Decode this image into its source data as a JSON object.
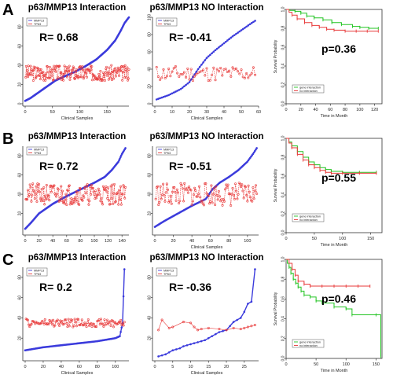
{
  "row_labels": [
    "A",
    "B",
    "C"
  ],
  "chart_data": [
    {
      "type": "line",
      "row": "A",
      "col": 0,
      "title": "p63/MMP13 Interaction",
      "annotation": "R= 0.68",
      "xlabel": "Clinical Samples",
      "ylabel": "",
      "xlim": [
        0,
        190
      ],
      "ylim": [
        0,
        90
      ],
      "xticks": [
        0,
        50,
        100,
        150
      ],
      "yticks": [
        0,
        20,
        40,
        60,
        80
      ],
      "legend": {
        "position": "top-left",
        "entries": [
          "MMP13",
          "TP63"
        ]
      },
      "series": [
        {
          "name": "MMP13",
          "color": "#3b3bdc",
          "marker": "dot",
          "n": 190,
          "anchors_x": [
            0,
            10,
            25,
            40,
            55,
            70,
            90,
            110,
            130,
            150,
            165,
            175,
            182,
            190
          ],
          "anchors_y": [
            3,
            6,
            12,
            18,
            24,
            28,
            33,
            39,
            46,
            56,
            66,
            76,
            84,
            90
          ]
        },
        {
          "name": "TP63",
          "color": "#e83a3a",
          "marker": "circle",
          "n": 190,
          "dashed": true,
          "center": 32,
          "spread": 8,
          "seed": 3
        }
      ]
    },
    {
      "type": "line",
      "row": "A",
      "col": 1,
      "title": "p63/MMP13 NO Interaction",
      "annotation": "R= -0.41",
      "xlabel": "Clinical Samples",
      "ylabel": "",
      "xlim": [
        0,
        60
      ],
      "ylim": [
        0,
        100
      ],
      "xticks": [
        0,
        10,
        20,
        30,
        40,
        50,
        60
      ],
      "yticks": [
        0,
        20,
        40,
        60,
        80,
        100
      ],
      "legend": {
        "position": "top-left",
        "entries": [
          "MMP13",
          "TP63"
        ]
      },
      "series": [
        {
          "name": "MMP13",
          "color": "#3b3bdc",
          "marker": "dot",
          "n": 58,
          "anchors_x": [
            1,
            8,
            15,
            20,
            25,
            30,
            35,
            40,
            45,
            50,
            55,
            58
          ],
          "anchors_y": [
            5,
            10,
            17,
            25,
            40,
            53,
            62,
            70,
            78,
            85,
            92,
            96
          ]
        },
        {
          "name": "TP63",
          "color": "#e83a3a",
          "marker": "circle",
          "n": 58,
          "dashed": true,
          "center": 35,
          "spread": 9,
          "seed": 11
        }
      ]
    },
    {
      "type": "line",
      "row": "A",
      "col": 2,
      "subtype": "survival",
      "title": "",
      "annotation": "p=0.36",
      "xlabel": "Time in Month",
      "ylabel": "Survival Probability",
      "xlim": [
        0,
        130
      ],
      "ylim": [
        0,
        1
      ],
      "xticks": [
        0,
        20,
        40,
        60,
        80,
        100,
        120
      ],
      "yticks": [
        0,
        0.2,
        0.4,
        0.6,
        0.8,
        1
      ],
      "ytick_labels": [
        "0.0",
        "0.2",
        "0.4",
        "0.6",
        "0.8",
        "1.0"
      ],
      "legend": {
        "position": "bottom-left",
        "entries": [
          "gene interaction",
          "no interaction"
        ]
      },
      "series": [
        {
          "name": "gene interaction",
          "color": "#22c422",
          "x": [
            0,
            5,
            12,
            20,
            28,
            38,
            50,
            62,
            75,
            90,
            100,
            112,
            125
          ],
          "y": [
            1,
            0.99,
            0.98,
            0.96,
            0.93,
            0.91,
            0.89,
            0.86,
            0.84,
            0.82,
            0.81,
            0.8,
            0.8
          ]
        },
        {
          "name": "no interaction",
          "color": "#e83a3a",
          "x": [
            0,
            4,
            8,
            15,
            25,
            35,
            45,
            55,
            65,
            80,
            95,
            110,
            125
          ],
          "y": [
            1,
            0.97,
            0.94,
            0.9,
            0.86,
            0.83,
            0.81,
            0.79,
            0.78,
            0.77,
            0.77,
            0.77,
            0.77
          ]
        }
      ]
    },
    {
      "type": "line",
      "row": "B",
      "col": 0,
      "title": "p63/MMP13 Interaction",
      "annotation": "R= 0.72",
      "xlabel": "",
      "ylabel": "",
      "xlim": [
        0,
        150
      ],
      "ylim": [
        0,
        90
      ],
      "xticks": [
        0,
        20,
        40,
        60,
        80,
        100,
        120,
        140
      ],
      "yticks": [
        20,
        40,
        60,
        80
      ],
      "legend": {
        "position": "top-left",
        "entries": [
          "MMP13",
          "TP63"
        ]
      },
      "series": [
        {
          "name": "MMP13",
          "color": "#3b3bdc",
          "marker": "dot",
          "n": 145,
          "anchors_x": [
            0,
            8,
            20,
            40,
            60,
            80,
            100,
            115,
            125,
            135,
            140,
            145
          ],
          "anchors_y": [
            4,
            10,
            20,
            30,
            38,
            45,
            52,
            58,
            65,
            74,
            82,
            88
          ]
        },
        {
          "name": "TP63",
          "color": "#e83a3a",
          "marker": "circle",
          "n": 145,
          "dashed": true,
          "center": 40,
          "spread": 11,
          "seed": 21
        }
      ]
    },
    {
      "type": "line",
      "row": "B",
      "col": 1,
      "title": "p63/MMP13 NO Interaction",
      "annotation": "R= -0.51",
      "xlabel": "Clinical Samples",
      "ylabel": "",
      "xlim": [
        0,
        112
      ],
      "ylim": [
        0,
        90
      ],
      "xticks": [
        0,
        20,
        40,
        60,
        80,
        100
      ],
      "yticks": [
        20,
        40,
        60,
        80
      ],
      "legend": {
        "position": "top-left",
        "entries": [
          "MMP13",
          "TP63"
        ]
      },
      "series": [
        {
          "name": "MMP13",
          "color": "#3b3bdc",
          "marker": "dot",
          "n": 110,
          "anchors_x": [
            0,
            10,
            25,
            40,
            55,
            62,
            70,
            80,
            90,
            100,
            106,
            110
          ],
          "anchors_y": [
            6,
            12,
            20,
            28,
            35,
            45,
            52,
            58,
            65,
            74,
            82,
            88
          ]
        },
        {
          "name": "TP63",
          "color": "#e83a3a",
          "marker": "circle",
          "n": 110,
          "dashed": true,
          "center": 40,
          "spread": 12,
          "seed": 33
        }
      ]
    },
    {
      "type": "line",
      "row": "B",
      "col": 2,
      "subtype": "survival",
      "title": "",
      "annotation": "p=0.55",
      "xlabel": "Time in Month",
      "ylabel": "Survival Probability",
      "xlim": [
        0,
        170
      ],
      "ylim": [
        0,
        1
      ],
      "xticks": [
        0,
        50,
        100,
        150
      ],
      "yticks": [
        0,
        0.2,
        0.4,
        0.6,
        0.8,
        1
      ],
      "ytick_labels": [
        "0.0",
        "0.2",
        "0.4",
        "0.6",
        "0.8",
        "1.0"
      ],
      "legend": {
        "position": "bottom-left",
        "entries": [
          "gene interaction",
          "no interaction"
        ]
      },
      "series": [
        {
          "name": "gene interaction",
          "color": "#22c422",
          "x": [
            0,
            5,
            10,
            20,
            30,
            40,
            50,
            60,
            70,
            80,
            100,
            130,
            160
          ],
          "y": [
            1,
            0.96,
            0.92,
            0.86,
            0.8,
            0.75,
            0.72,
            0.69,
            0.67,
            0.65,
            0.64,
            0.64,
            0.64
          ]
        },
        {
          "name": "no interaction",
          "color": "#e83a3a",
          "x": [
            0,
            5,
            10,
            20,
            30,
            40,
            50,
            60,
            70,
            80,
            100,
            130,
            160
          ],
          "y": [
            1,
            0.95,
            0.9,
            0.83,
            0.77,
            0.72,
            0.69,
            0.66,
            0.64,
            0.63,
            0.63,
            0.63,
            0.63
          ]
        }
      ]
    },
    {
      "type": "line",
      "row": "C",
      "col": 0,
      "title": "p63/MMP13 Interaction",
      "annotation": "R= 0.2",
      "xlabel": "Clinical Samples",
      "ylabel": "",
      "xlim": [
        0,
        115
      ],
      "ylim": [
        0,
        90
      ],
      "xticks": [
        0,
        20,
        40,
        60,
        80,
        100
      ],
      "yticks": [
        20,
        40,
        60,
        80
      ],
      "legend": {
        "position": "top-left",
        "entries": [
          "MMP13",
          "TP63"
        ]
      },
      "series": [
        {
          "name": "MMP13",
          "color": "#3b3bdc",
          "marker": "dot",
          "n": 110,
          "anchors_x": [
            0,
            20,
            40,
            60,
            80,
            100,
            105,
            108,
            110
          ],
          "anchors_y": [
            8,
            11,
            13,
            15,
            17,
            20,
            22,
            35,
            88
          ]
        },
        {
          "name": "TP63",
          "color": "#e83a3a",
          "marker": "circle",
          "n": 110,
          "dashed": true,
          "center": 35,
          "spread": 4,
          "seed": 47
        }
      ]
    },
    {
      "type": "line",
      "row": "C",
      "col": 1,
      "title": "p63/MMP13 NO Interaction",
      "annotation": "R= -0.36",
      "xlabel": "Clinical Samples",
      "ylabel": "",
      "xlim": [
        0,
        29
      ],
      "ylim": [
        0,
        90
      ],
      "xticks": [
        0,
        5,
        10,
        15,
        20,
        25
      ],
      "yticks": [
        20,
        40,
        60,
        80
      ],
      "legend": {
        "position": "top-left",
        "entries": [
          "MMP13",
          "TP63"
        ]
      },
      "series": [
        {
          "name": "MMP13",
          "color": "#3b3bdc",
          "marker": "dot",
          "x": [
            1,
            2,
            3,
            4,
            5,
            6,
            7,
            8,
            9,
            10,
            11,
            12,
            13,
            14,
            15,
            16,
            17,
            18,
            19,
            20,
            21,
            22,
            23,
            24,
            25,
            26,
            27,
            28
          ],
          "y": [
            2,
            3,
            4,
            6,
            8,
            9,
            10,
            12,
            13,
            14,
            15,
            16,
            17,
            18,
            20,
            22,
            24,
            26,
            27,
            28,
            32,
            36,
            38,
            40,
            46,
            54,
            56,
            88
          ]
        },
        {
          "name": "TP63",
          "color": "#e83a3a",
          "marker": "circle",
          "x": [
            1,
            2,
            4,
            5,
            8,
            10,
            11,
            12,
            13,
            15,
            18,
            20,
            22,
            24,
            25,
            26,
            27,
            28
          ],
          "y": [
            28,
            38,
            30,
            31,
            36,
            35,
            31,
            28,
            29,
            30,
            29,
            28,
            30,
            29,
            30,
            31,
            32,
            33
          ]
        }
      ]
    },
    {
      "type": "line",
      "row": "C",
      "col": 2,
      "subtype": "survival",
      "title": "",
      "annotation": "p=0.46",
      "xlabel": "Time in Month",
      "ylabel": "Survival Probability",
      "xlim": [
        0,
        160
      ],
      "ylim": [
        0,
        1
      ],
      "xticks": [
        0,
        50,
        100,
        150
      ],
      "yticks": [
        0,
        0.2,
        0.4,
        0.6,
        0.8,
        1
      ],
      "ytick_labels": [
        "0.0",
        "0.2",
        "0.4",
        "0.6",
        "0.8",
        "1.0"
      ],
      "legend": {
        "position": "bottom-left",
        "entries": [
          "gene interaction",
          "no interaction"
        ]
      },
      "series": [
        {
          "name": "gene interaction",
          "color": "#22c422",
          "x": [
            0,
            2,
            5,
            8,
            12,
            16,
            20,
            25,
            30,
            40,
            50,
            60,
            80,
            100,
            110,
            150,
            158
          ],
          "y": [
            1,
            0.96,
            0.92,
            0.86,
            0.8,
            0.76,
            0.72,
            0.68,
            0.64,
            0.62,
            0.58,
            0.56,
            0.52,
            0.5,
            0.44,
            0.44,
            0.02
          ]
        },
        {
          "name": "no interaction",
          "color": "#e83a3a",
          "x": [
            0,
            5,
            10,
            15,
            20,
            30,
            40,
            60,
            80,
            100,
            120,
            140
          ],
          "y": [
            1,
            0.96,
            0.9,
            0.84,
            0.78,
            0.75,
            0.73,
            0.73,
            0.73,
            0.73,
            0.73,
            0.73
          ]
        }
      ]
    }
  ]
}
